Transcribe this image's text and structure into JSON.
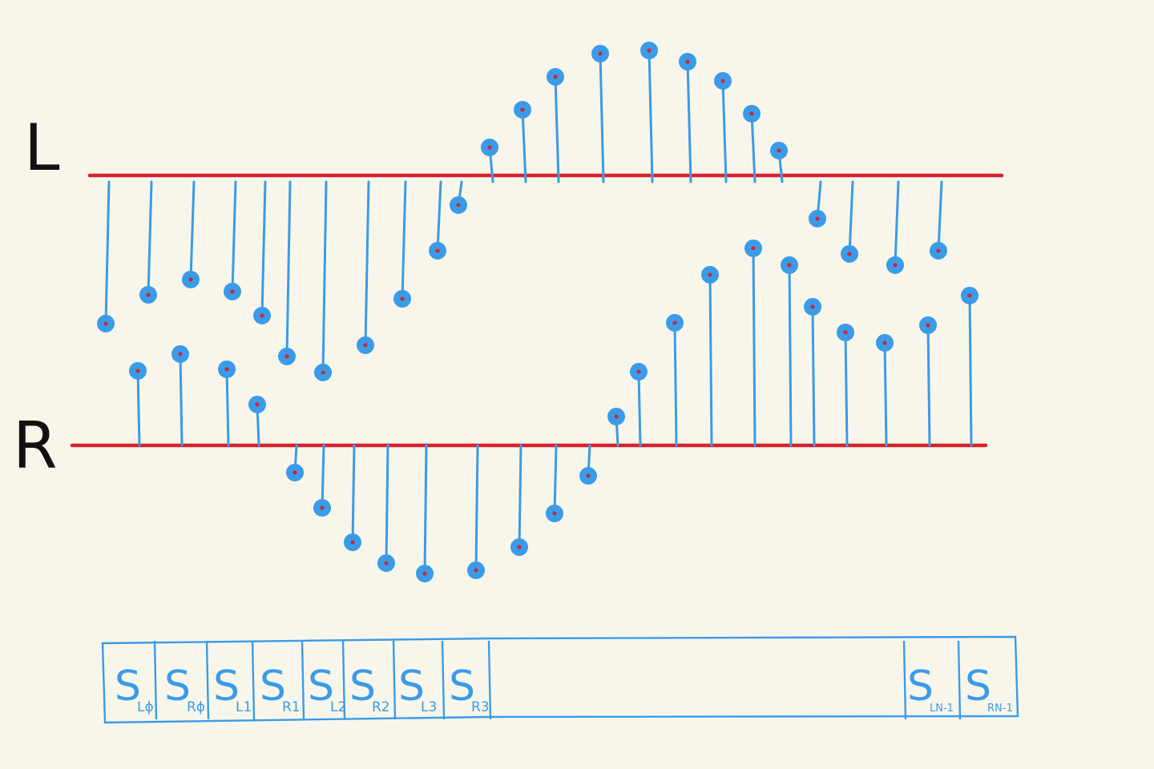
{
  "channels": {
    "left_label": "L",
    "right_label": "R"
  },
  "buffer": {
    "cells": [
      {
        "letter": "S",
        "sub": "Lϕ"
      },
      {
        "letter": "S",
        "sub": "Rϕ"
      },
      {
        "letter": "S",
        "sub": "L1"
      },
      {
        "letter": "S",
        "sub": "R1"
      },
      {
        "letter": "S",
        "sub": "L2"
      },
      {
        "letter": "S",
        "sub": "R2"
      },
      {
        "letter": "S",
        "sub": "L3"
      },
      {
        "letter": "S",
        "sub": "R3"
      },
      {
        "letter": "S",
        "sub": "LN-1"
      },
      {
        "letter": "S",
        "sub": "RN-1"
      }
    ]
  },
  "colors": {
    "background": "#f8f6ea",
    "waveform": "#d6222d",
    "samples": "#3a9be8",
    "label_ink": "#111111"
  }
}
